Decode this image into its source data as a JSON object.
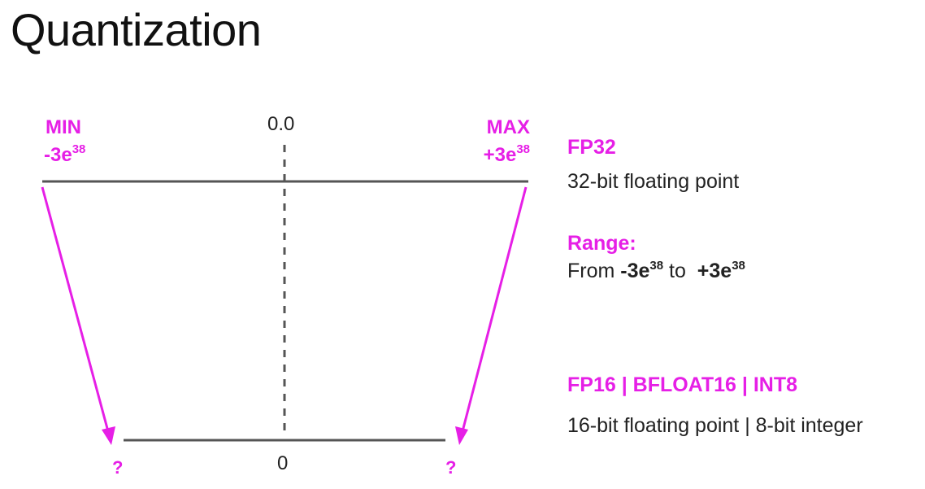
{
  "title": "Quantization",
  "colors": {
    "accent": "#e61fe6",
    "line": "#555555"
  },
  "diagram": {
    "top_axis": {
      "min_label": "MIN",
      "min_value": "-3e",
      "min_exp": "38",
      "center_label": "0.0",
      "max_label": "MAX",
      "max_value": "+3e",
      "max_exp": "38"
    },
    "bottom_axis": {
      "center_label": "0",
      "left_unknown": "?",
      "right_unknown": "?"
    }
  },
  "info": {
    "fp32_heading": "FP32",
    "fp32_desc": "32-bit floating point",
    "range_heading": "Range:",
    "range_from": "From ",
    "range_min": "-3e",
    "range_min_exp": "38",
    "range_to": " to  ",
    "range_max": "+3e",
    "range_max_exp": "38",
    "low_heading": "FP16 | BFLOAT16 | INT8",
    "low_desc": "16-bit floating point | 8-bit integer"
  }
}
